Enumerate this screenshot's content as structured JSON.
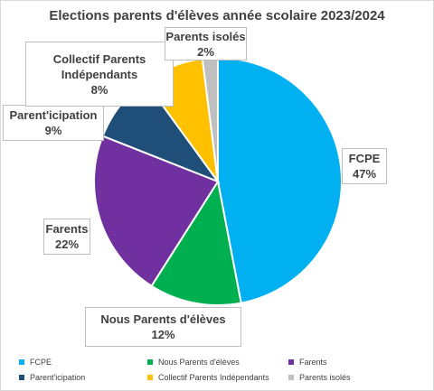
{
  "chart_data": {
    "type": "pie",
    "title": "Elections parents d'élèves  année scolaire 2023/2024",
    "unit": "%",
    "slices": [
      {
        "name": "FCPE",
        "value": 47,
        "label": "47%",
        "color": "#00b0f0"
      },
      {
        "name": "Nous Parents d'élèves",
        "value": 12,
        "label": "12%",
        "color": "#00b050"
      },
      {
        "name": "Farents",
        "value": 22,
        "label": "22%",
        "color": "#7030a0"
      },
      {
        "name": "Parent'icipation",
        "value": 9,
        "label": "9%",
        "color": "#1f4e79"
      },
      {
        "name": "Collectif Parents Indépendants",
        "value": 8,
        "label": "8%",
        "color": "#ffc000"
      },
      {
        "name": "Parents isolés",
        "value": 2,
        "label": "2%",
        "color": "#bfbfbf"
      }
    ],
    "data_labels": [
      {
        "name_lines": [
          "FCPE"
        ],
        "value": "47%"
      },
      {
        "name_lines": [
          "Nous Parents d'élèves"
        ],
        "value": "12%"
      },
      {
        "name_lines": [
          "Farents"
        ],
        "value": "22%"
      },
      {
        "name_lines": [
          "Parent'icipation"
        ],
        "value": "9%"
      },
      {
        "name_lines": [
          "Collectif Parents",
          "Indépendants"
        ],
        "value": "8%"
      },
      {
        "name_lines": [
          "Parents isolés"
        ],
        "value": "2%"
      }
    ],
    "legend": {
      "position": "bottom",
      "items": [
        "FCPE",
        "Nous Parents d'élèves",
        "Farents",
        "Parent'icipation",
        "Collectif Parents Indépendants",
        "Parents isolés"
      ]
    }
  }
}
